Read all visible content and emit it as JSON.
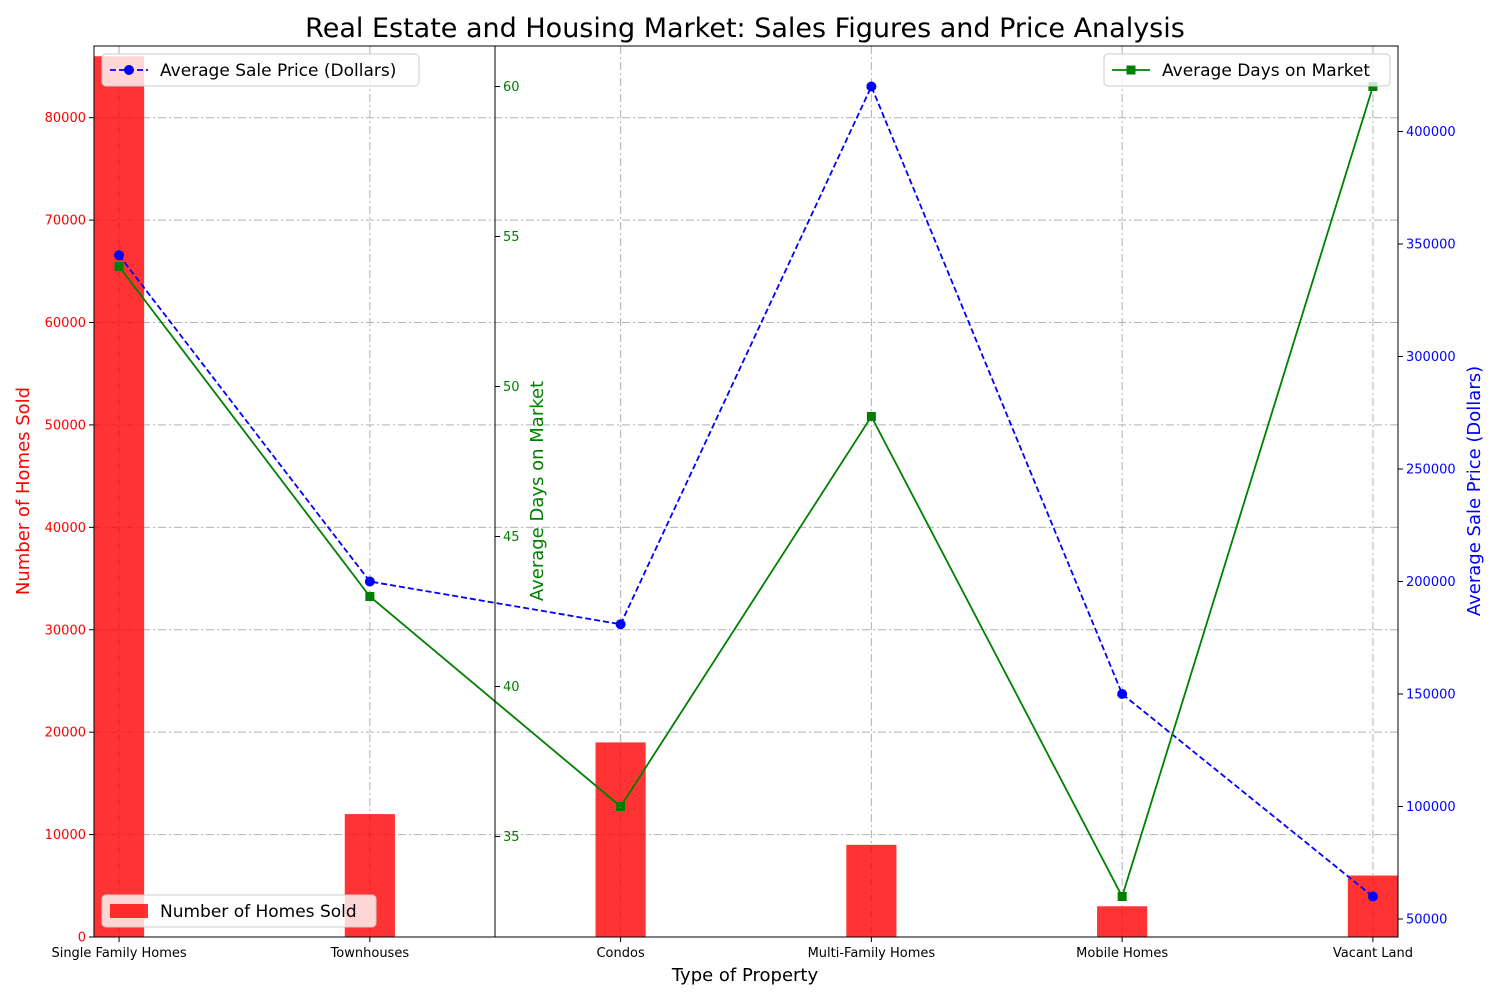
{
  "chart_data": {
    "type": "bar",
    "title": "Real Estate and Housing Market: Sales Figures and Price Analysis",
    "xlabel": "Type of Property",
    "categories": [
      "Single Family Homes",
      "Townhouses",
      "Condos",
      "Multi-Family Homes",
      "Mobile Homes",
      "Vacant Land"
    ],
    "grid": true,
    "series": [
      {
        "name": "Number of Homes Sold",
        "type": "bar",
        "axis": "left",
        "color": "#ff0000",
        "values": [
          86000,
          12000,
          19000,
          9000,
          3000,
          6000
        ]
      },
      {
        "name": "Average Days on Market",
        "type": "line",
        "axis": "middle",
        "color": "#008000",
        "marker": "square",
        "line_style": "solid",
        "values": [
          54,
          43,
          36,
          49,
          33,
          60
        ]
      },
      {
        "name": "Average Sale Price (Dollars)",
        "type": "line",
        "axis": "right",
        "color": "#0000ff",
        "marker": "circle",
        "line_style": "dashed",
        "values": [
          345000,
          200000,
          181000,
          420000,
          150000,
          60000
        ]
      }
    ],
    "axes": {
      "left": {
        "label": "Number of Homes Sold",
        "color": "#ff0000",
        "ylim": [
          0,
          87000
        ],
        "ticks": [
          "0",
          "10000",
          "20000",
          "30000",
          "40000",
          "50000",
          "60000",
          "70000",
          "80000"
        ]
      },
      "middle": {
        "label": "Average Days on Market",
        "color": "#008000",
        "ylim": [
          31.65,
          61.35
        ],
        "ticks": [
          "35",
          "40",
          "45",
          "50",
          "55",
          "60"
        ]
      },
      "right": {
        "label": "Average Sale Price (Dollars)",
        "color": "#0000ff",
        "ylim": [
          42000,
          438000
        ],
        "ticks": [
          "50000",
          "100000",
          "150000",
          "200000",
          "250000",
          "300000",
          "350000",
          "400000"
        ]
      }
    },
    "legends": [
      {
        "label": "Average Sale Price (Dollars)",
        "placement": "top-left"
      },
      {
        "label": "Average Days on Market",
        "placement": "top-right"
      },
      {
        "label": "Number of Homes Sold",
        "placement": "bottom-left"
      }
    ]
  }
}
